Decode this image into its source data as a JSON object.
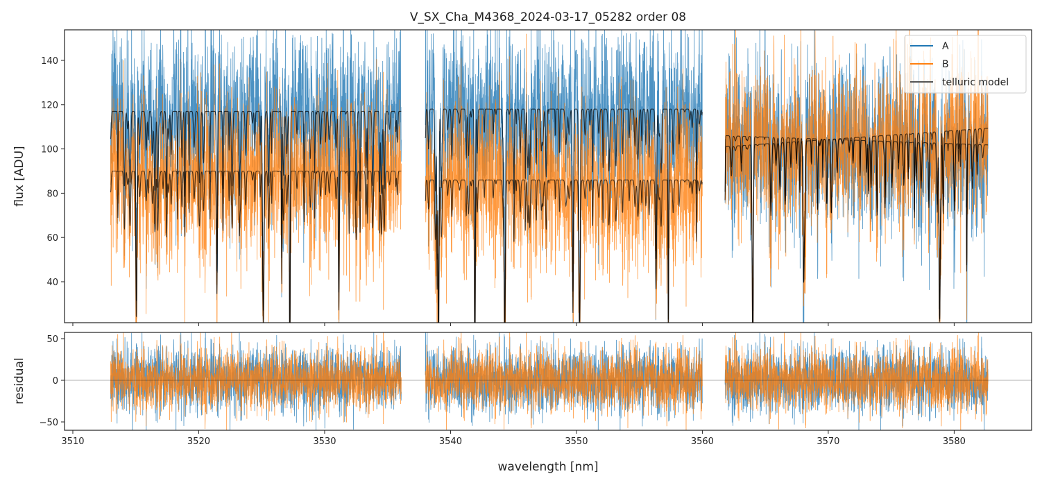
{
  "chart_data": {
    "type": "line",
    "title": "V_SX_Cha_M4368_2024-03-17_05282  order 08",
    "xlabel": "wavelength [nm]",
    "panels": [
      {
        "name": "flux",
        "ylabel": "flux [ADU]",
        "ylim": [
          21.5,
          153.8
        ],
        "yticks": [
          40,
          60,
          80,
          100,
          120,
          140
        ]
      },
      {
        "name": "residual",
        "ylabel": "residual",
        "ylim": [
          -60,
          57.5
        ],
        "yticks": [
          -50,
          0,
          50
        ]
      }
    ],
    "xlim": [
      3509.34,
      3586.15
    ],
    "xticks": [
      3510,
      3520,
      3530,
      3540,
      3550,
      3560,
      3570,
      3580
    ],
    "segments": [
      [
        3513.0,
        3536.1
      ],
      [
        3538.0,
        3560.0
      ],
      [
        3561.8,
        3582.7
      ]
    ],
    "series": [
      {
        "name": "A",
        "color": "#1f77b4",
        "continuum": [
          117,
          118,
          106
        ],
        "noise_sigma": 14
      },
      {
        "name": "B",
        "color": "#ff7f0e",
        "continuum": [
          90,
          86,
          101
        ],
        "noise_sigma": 13
      },
      {
        "name": "telluric model",
        "color": "#000000"
      }
    ],
    "residual_noise_sigma": [
      15,
      14
    ],
    "legend": {
      "position": "top-right",
      "labels": [
        "A",
        "B",
        "telluric model"
      ]
    },
    "grid": false
  }
}
